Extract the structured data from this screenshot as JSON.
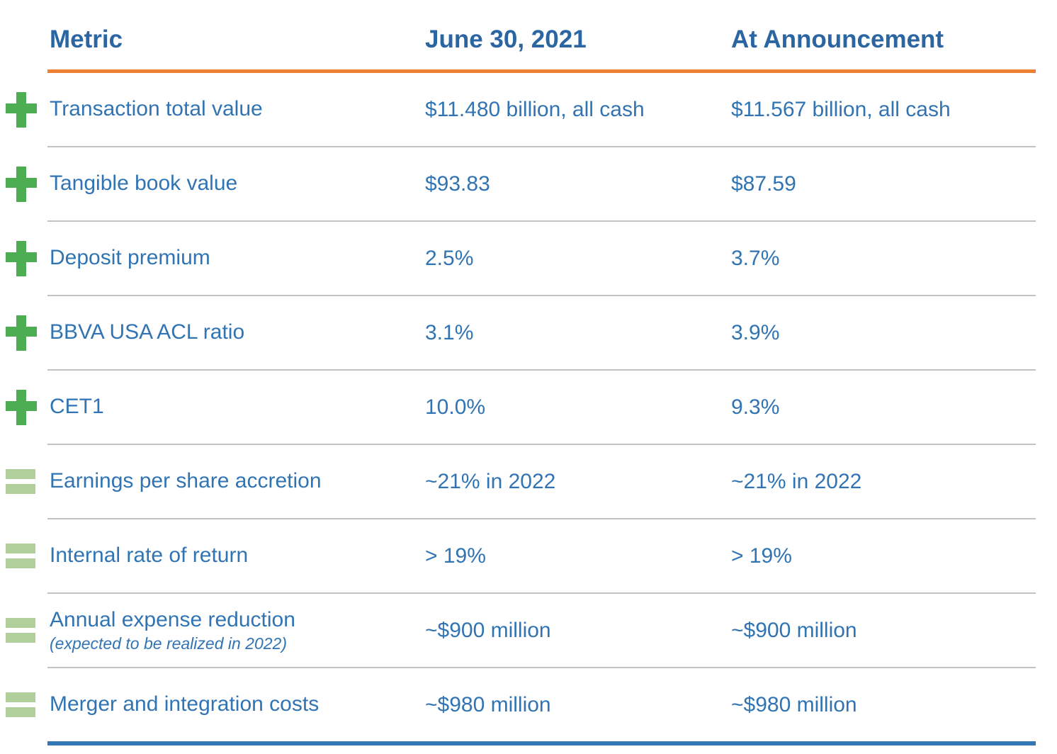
{
  "table": {
    "headers": {
      "metric": "Metric",
      "june": "June 30, 2021",
      "announcement": "At Announcement"
    },
    "rows": [
      {
        "icon": "plus",
        "metric": "Transaction total value",
        "note": "",
        "june": "$11.480 billion, all cash",
        "announcement": "$11.567 billion, all cash"
      },
      {
        "icon": "plus",
        "metric": "Tangible book value",
        "note": "",
        "june": "$93.83",
        "announcement": "$87.59"
      },
      {
        "icon": "plus",
        "metric": "Deposit premium",
        "note": "",
        "june": "2.5%",
        "announcement": "3.7%"
      },
      {
        "icon": "plus",
        "metric": "BBVA USA ACL ratio",
        "note": "",
        "june": "3.1%",
        "announcement": "3.9%"
      },
      {
        "icon": "plus",
        "metric": "CET1",
        "note": "",
        "june": "10.0%",
        "announcement": "9.3%"
      },
      {
        "icon": "equals",
        "metric": "Earnings per share accretion",
        "note": "",
        "june": "~21% in 2022",
        "announcement": "~21% in 2022"
      },
      {
        "icon": "equals",
        "metric": "Internal rate of return",
        "note": "",
        "june": "> 19%",
        "announcement": "> 19%"
      },
      {
        "icon": "equals",
        "metric": "Annual expense reduction",
        "note": "(expected to be realized in 2022)",
        "june": "~$900 million",
        "announcement": "~$900 million"
      },
      {
        "icon": "equals",
        "metric": "Merger and integration costs",
        "note": "",
        "june": "~$980 million",
        "announcement": "~$980 million"
      }
    ],
    "colors": {
      "header_text": "#2b66a3",
      "body_text": "#3174b3",
      "header_rule": "#ed8032",
      "row_divider": "#c2c2c2",
      "bottom_rule": "#3576b5",
      "plus_icon": "#4cad53",
      "equals_icon": "#b1cf9b"
    }
  }
}
